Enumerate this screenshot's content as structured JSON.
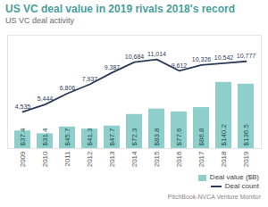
{
  "chart_data": {
    "type": "bar",
    "title": "US VC deal value in 2019 rivals 2018's record",
    "subtitle": "US VC deal activity",
    "caption": "PitchBook-NVCA Venture Monitor",
    "categories": [
      "2009",
      "2010",
      "2011",
      "2012",
      "2013",
      "2014",
      "2015",
      "2016",
      "2017",
      "2018",
      "2019"
    ],
    "series": [
      {
        "name": "Deal value ($B)",
        "type": "bar",
        "color": "#8fcfcb",
        "values": [
          37.4,
          31.4,
          45.7,
          41.3,
          47.7,
          72.3,
          83.8,
          77.6,
          86.8,
          140.2,
          136.5
        ],
        "value_labels": [
          "$37.4",
          "$31.4",
          "$45.7",
          "$41.3",
          "$47.7",
          "$72.3",
          "$83.8",
          "$77.6",
          "$86.8",
          "$140.2",
          "$136.5"
        ]
      },
      {
        "name": "Deal count",
        "type": "line",
        "axis": "y2",
        "color": "#2b3b57",
        "values": [
          4535,
          5444,
          6806,
          7937,
          9387,
          10684,
          11014,
          9612,
          10326,
          10542,
          10777
        ],
        "value_labels": [
          "4,535",
          "5,444",
          "6,806",
          "7,937",
          "9,387",
          "10,684",
          "11,014",
          "9,612",
          "10,326",
          "10,542",
          "10,777"
        ]
      }
    ],
    "ylim": [
      0,
      240
    ],
    "y2lim": [
      0,
      14000
    ],
    "data_labels": true,
    "tick_labels": "x",
    "legend": "bottom"
  }
}
